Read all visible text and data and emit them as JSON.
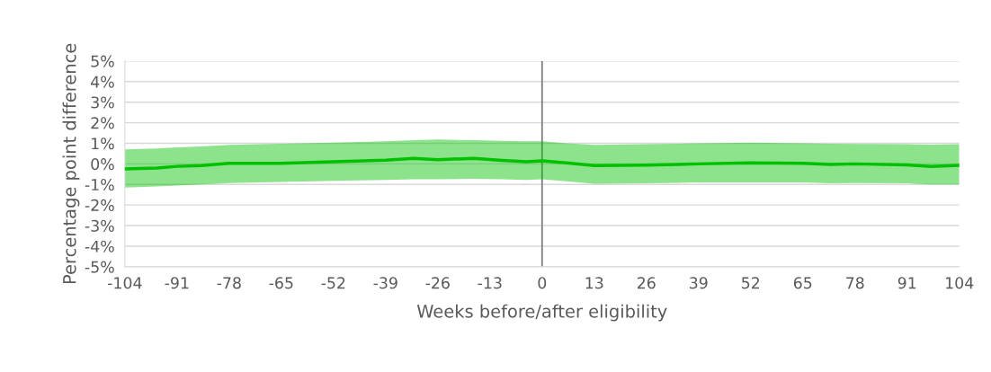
{
  "chart_data": {
    "type": "line",
    "xlabel": "Weeks before/after eligibility",
    "ylabel": "Percentage point difference",
    "x": [
      -104,
      -96,
      -91,
      -85,
      -78,
      -65,
      -52,
      -39,
      -32,
      -26,
      -17,
      -10,
      -4,
      0,
      6,
      13,
      26,
      34,
      39,
      52,
      65,
      72,
      78,
      91,
      97,
      104
    ],
    "series": [
      {
        "color": "#00c000",
        "values": [
          -0.25,
          -0.2,
          -0.12,
          -0.08,
          0.03,
          0.03,
          0.1,
          0.18,
          0.27,
          0.2,
          0.27,
          0.17,
          0.1,
          0.15,
          0.05,
          -0.08,
          -0.06,
          -0.03,
          0.0,
          0.05,
          0.03,
          -0.03,
          0.0,
          -0.05,
          -0.13,
          -0.07
        ],
        "lower": [
          -1.15,
          -1.1,
          -1.05,
          -1.0,
          -0.93,
          -0.88,
          -0.82,
          -0.78,
          -0.75,
          -0.75,
          -0.73,
          -0.75,
          -0.78,
          -0.75,
          -0.85,
          -0.97,
          -0.95,
          -0.92,
          -0.9,
          -0.9,
          -0.9,
          -0.95,
          -0.93,
          -0.95,
          -1.0,
          -1.0
        ],
        "upper": [
          0.7,
          0.75,
          0.8,
          0.85,
          0.92,
          0.98,
          1.03,
          1.1,
          1.15,
          1.18,
          1.15,
          1.12,
          1.1,
          1.1,
          1.0,
          0.92,
          0.95,
          0.98,
          1.0,
          1.03,
          1.0,
          0.98,
          0.97,
          0.95,
          0.93,
          0.95
        ]
      }
    ],
    "xlim": [
      -104,
      104
    ],
    "xticks": [
      -104,
      -91,
      -78,
      -65,
      -52,
      -39,
      -26,
      -13,
      0,
      13,
      26,
      39,
      52,
      65,
      78,
      91,
      104
    ],
    "ylim": [
      -5,
      5
    ],
    "yticks": [
      {
        "value": -5,
        "label": "-5%"
      },
      {
        "value": -4,
        "label": "-4%"
      },
      {
        "value": -3,
        "label": "-3%"
      },
      {
        "value": -2,
        "label": "-2%"
      },
      {
        "value": -1,
        "label": "-1%"
      },
      {
        "value": 0,
        "label": "0%"
      },
      {
        "value": 1,
        "label": "1%"
      },
      {
        "value": 2,
        "label": "2%"
      },
      {
        "value": 3,
        "label": "3%"
      },
      {
        "value": 4,
        "label": "4%"
      },
      {
        "value": 5,
        "label": "5%"
      }
    ],
    "ref_lines": [
      {
        "axis": "x",
        "value": 0,
        "color": "#7f7f7f"
      }
    ],
    "grid": "y",
    "legend": false
  }
}
